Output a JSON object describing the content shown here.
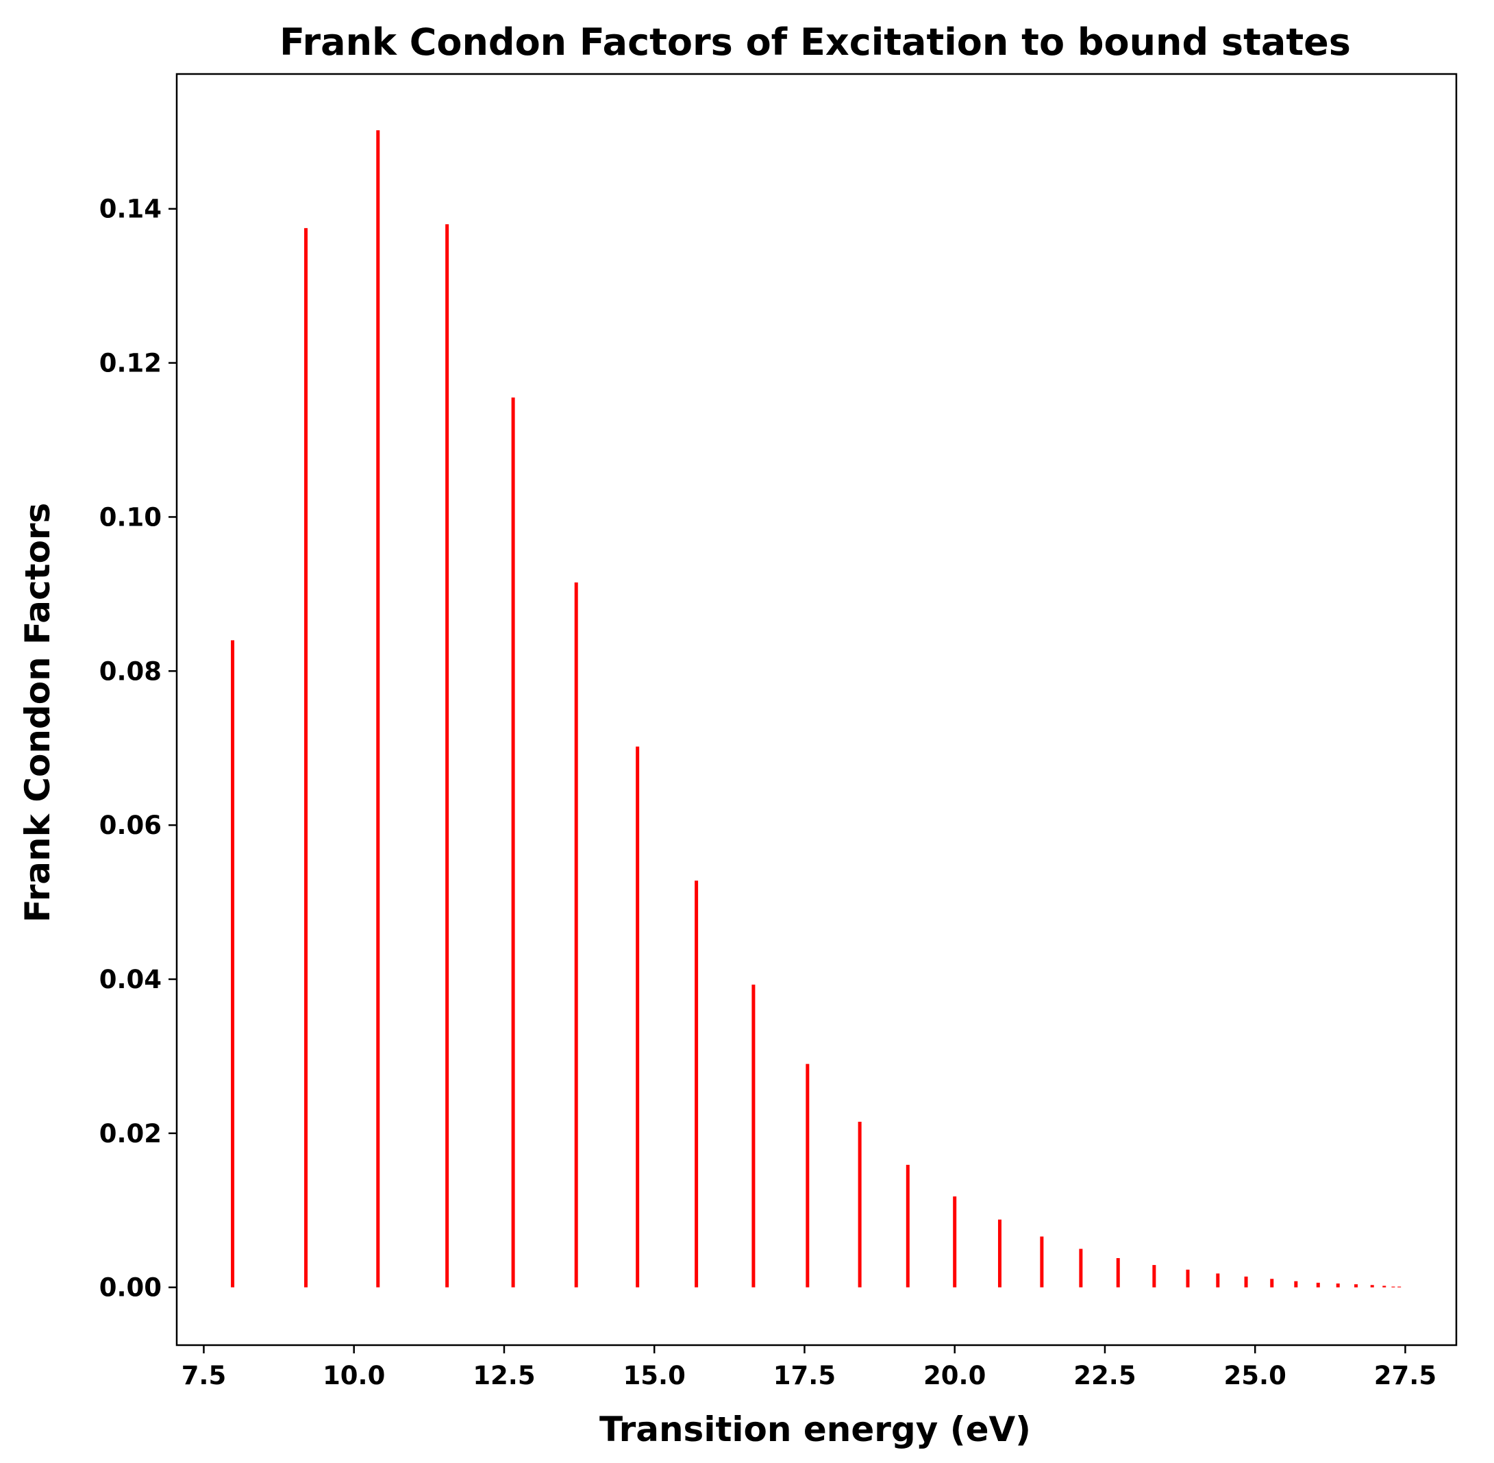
{
  "chart_data": {
    "type": "bar",
    "title": "Frank Condon Factors of Excitation to bound states",
    "xlabel": "Transition energy (eV)",
    "ylabel": "Frank Condon Factors",
    "xlim": [
      7.05,
      28.35
    ],
    "ylim": [
      -0.0075,
      0.1575
    ],
    "x_ticks": [
      7.5,
      10.0,
      12.5,
      15.0,
      17.5,
      20.0,
      22.5,
      25.0,
      27.5
    ],
    "x_tick_labels": [
      "7.5",
      "10.0",
      "12.5",
      "15.0",
      "17.5",
      "20.0",
      "22.5",
      "25.0",
      "27.5"
    ],
    "y_ticks": [
      0.0,
      0.02,
      0.04,
      0.06,
      0.08,
      0.1,
      0.12,
      0.14
    ],
    "y_tick_labels": [
      "0.00",
      "0.02",
      "0.04",
      "0.06",
      "0.08",
      "0.10",
      "0.12",
      "0.14"
    ],
    "grid": false,
    "line_color": "#ff0000",
    "series": [
      {
        "x": [
          7.98,
          9.2,
          10.4,
          11.55,
          12.65,
          13.7,
          14.72,
          15.7,
          16.65,
          17.55,
          18.42,
          19.22,
          20.0,
          20.75,
          21.45,
          22.1,
          22.72,
          23.32,
          23.88,
          24.38,
          24.85,
          25.28,
          25.68,
          26.05,
          26.38,
          26.68,
          26.95,
          27.15,
          27.3,
          27.4
        ],
        "values": [
          0.084,
          0.1375,
          0.1502,
          0.138,
          0.1155,
          0.0915,
          0.0702,
          0.0528,
          0.0393,
          0.029,
          0.0215,
          0.0159,
          0.0118,
          0.0088,
          0.0066,
          0.005,
          0.0038,
          0.0029,
          0.0023,
          0.0018,
          0.0014,
          0.0011,
          0.0008,
          0.0006,
          0.0005,
          0.0004,
          0.0003,
          0.0002,
          0.0001,
          0.0001
        ]
      }
    ]
  }
}
